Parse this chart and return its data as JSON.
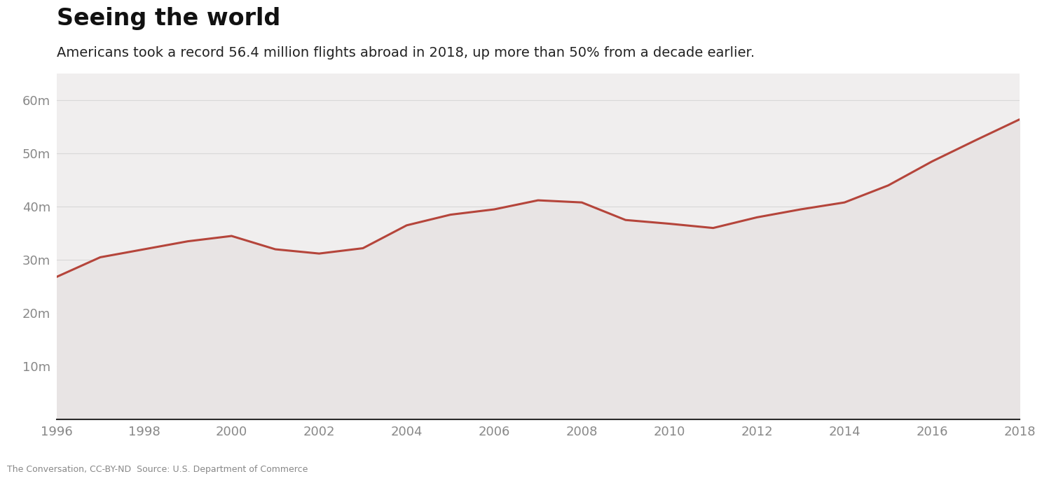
{
  "title": "Seeing the world",
  "subtitle": "Americans took a record 56.4 million flights abroad in 2018, up more than 50% from a decade earlier.",
  "years": [
    1996,
    1997,
    1998,
    1999,
    2000,
    2001,
    2002,
    2003,
    2004,
    2005,
    2006,
    2007,
    2008,
    2009,
    2010,
    2011,
    2012,
    2013,
    2014,
    2015,
    2016,
    2017,
    2018
  ],
  "values": [
    26.8,
    30.5,
    32.0,
    33.5,
    34.5,
    32.0,
    31.2,
    32.2,
    36.5,
    38.5,
    39.5,
    41.2,
    40.8,
    37.5,
    36.8,
    36.0,
    38.0,
    39.5,
    40.8,
    44.0,
    48.5,
    52.5,
    56.4
  ],
  "line_color": "#b5453b",
  "fill_color": "#e8e4e4",
  "background_color": "#f0eeee",
  "outer_background": "#ffffff",
  "axis_color": "#888888",
  "grid_color": "#d8d8d8",
  "title_color": "#111111",
  "subtitle_color": "#222222",
  "xlim": [
    1996,
    2018
  ],
  "ylim": [
    0,
    65
  ],
  "yticks": [
    10,
    20,
    30,
    40,
    50,
    60
  ],
  "xticks": [
    1996,
    1998,
    2000,
    2002,
    2004,
    2006,
    2008,
    2010,
    2012,
    2014,
    2016,
    2018
  ],
  "title_fontsize": 24,
  "subtitle_fontsize": 14,
  "tick_fontsize": 13,
  "line_width": 2.2,
  "source_text": "The Conversation, CC-BY-ND  Source: U.S. Department of Commerce"
}
